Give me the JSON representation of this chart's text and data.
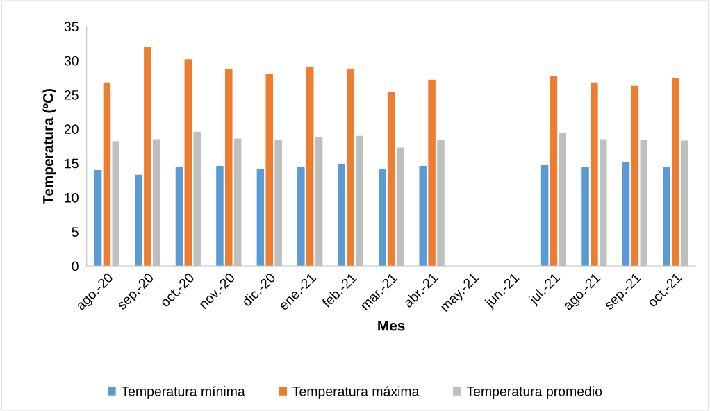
{
  "chart_data": {
    "type": "bar",
    "xlabel": "Mes",
    "ylabel": "Temperatura (ºC)",
    "categories": [
      "ago.-20",
      "sep.-20",
      "oct.-20",
      "nov.-20",
      "dic.-20",
      "ene.-21",
      "feb.-21",
      "mar.-21",
      "abr.-21",
      "may.-21",
      "jun.-21",
      "jul.-21",
      "ago.-21",
      "sep.-21",
      "oct.-21"
    ],
    "series": [
      {
        "name": "Temperatura mínima",
        "color": "#5b9bd5",
        "values": [
          14.0,
          13.3,
          14.4,
          14.6,
          14.2,
          14.4,
          14.9,
          14.1,
          14.6,
          null,
          null,
          14.8,
          14.5,
          15.1,
          14.5
        ]
      },
      {
        "name": "Temperatura máxima",
        "color": "#ed7d31",
        "values": [
          26.8,
          32.0,
          30.2,
          28.8,
          28.0,
          29.1,
          28.8,
          25.4,
          27.2,
          null,
          null,
          27.7,
          26.8,
          26.3,
          27.4
        ]
      },
      {
        "name": "Temperatura promedio",
        "color": "#bfbfbf",
        "values": [
          18.2,
          18.5,
          19.6,
          18.6,
          18.4,
          18.8,
          19.0,
          17.3,
          18.4,
          null,
          null,
          19.4,
          18.5,
          18.4,
          18.3
        ]
      }
    ],
    "ylim": [
      0,
      35
    ],
    "yticks": [
      0,
      5,
      10,
      15,
      20,
      25,
      30,
      35
    ],
    "grid": false,
    "legend": "bottom"
  }
}
